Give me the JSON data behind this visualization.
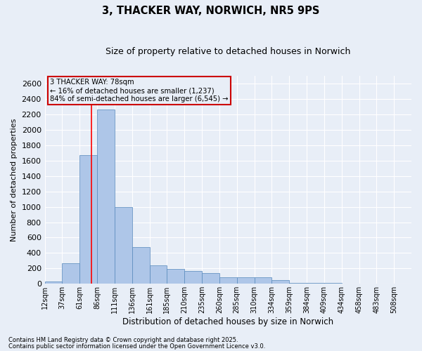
{
  "title": "3, THACKER WAY, NORWICH, NR5 9PS",
  "subtitle": "Size of property relative to detached houses in Norwich",
  "xlabel": "Distribution of detached houses by size in Norwich",
  "ylabel": "Number of detached properties",
  "background_color": "#e8eef7",
  "bar_color": "#aec6e8",
  "bar_edge_color": "#5588bb",
  "grid_color": "#ffffff",
  "property_line_bin": 2,
  "annotation_title": "3 THACKER WAY: 78sqm",
  "annotation_line1": "← 16% of detached houses are smaller (1,237)",
  "annotation_line2": "84% of semi-detached houses are larger (6,545) →",
  "annotation_box_color": "#cc0000",
  "categories": [
    "12sqm",
    "37sqm",
    "61sqm",
    "86sqm",
    "111sqm",
    "136sqm",
    "161sqm",
    "185sqm",
    "210sqm",
    "235sqm",
    "260sqm",
    "285sqm",
    "310sqm",
    "334sqm",
    "359sqm",
    "384sqm",
    "409sqm",
    "434sqm",
    "458sqm",
    "483sqm",
    "508sqm"
  ],
  "values": [
    30,
    270,
    1670,
    2260,
    1000,
    480,
    240,
    195,
    170,
    140,
    85,
    85,
    85,
    50,
    10,
    10,
    10,
    5,
    5,
    5,
    5
  ],
  "ylim": [
    0,
    2700
  ],
  "yticks": [
    0,
    200,
    400,
    600,
    800,
    1000,
    1200,
    1400,
    1600,
    1800,
    2000,
    2200,
    2400,
    2600
  ],
  "footnote1": "Contains HM Land Registry data © Crown copyright and database right 2025.",
  "footnote2": "Contains public sector information licensed under the Open Government Licence v3.0."
}
